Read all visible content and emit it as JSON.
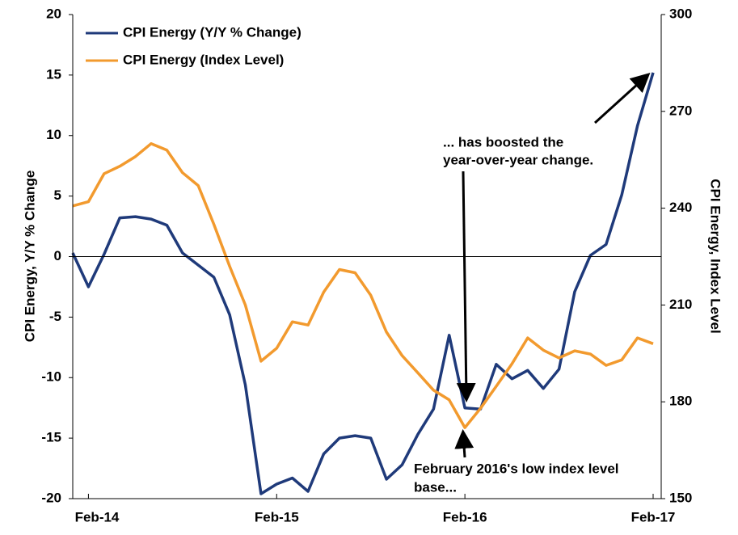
{
  "chart_data": {
    "type": "line",
    "categories": [
      null,
      "Feb-14",
      null,
      null,
      null,
      null,
      null,
      null,
      null,
      null,
      null,
      null,
      null,
      "Feb-15",
      null,
      null,
      null,
      null,
      null,
      null,
      null,
      null,
      null,
      null,
      null,
      "Feb-16",
      null,
      null,
      null,
      null,
      null,
      null,
      null,
      null,
      null,
      null,
      null,
      "Feb-17"
    ],
    "series": [
      {
        "name": "CPI Energy (Y/Y % Change)",
        "color": "#1f3a7a",
        "axis": "y",
        "values": [
          0.3,
          -2.5,
          0.2,
          3.2,
          3.3,
          3.1,
          2.6,
          0.3,
          -0.7,
          -1.7,
          -4.8,
          -10.6,
          -19.6,
          -18.8,
          -18.3,
          -19.4,
          -16.3,
          -15.0,
          -14.8,
          -15.0,
          -18.4,
          -17.2,
          -14.7,
          -12.6,
          -6.5,
          -12.5,
          -12.6,
          -8.9,
          -10.1,
          -9.4,
          -10.9,
          -9.3,
          -2.9,
          0.1,
          1.0,
          5.1,
          10.8,
          15.2
        ]
      },
      {
        "name": "CPI Energy (Index Level)",
        "color": "#f29a2e",
        "axis": "y2",
        "values": [
          240.7,
          242,
          250.7,
          253,
          256,
          260,
          258,
          251,
          247,
          235,
          222,
          210,
          192.6,
          196.6,
          204.8,
          203.8,
          214,
          221,
          220,
          213,
          201.6,
          194.3,
          189,
          183.6,
          180.6,
          172,
          178,
          184.8,
          191.8,
          199.8,
          196,
          193.6,
          195.8,
          194.8,
          191.3,
          193,
          199.8,
          198
        ]
      }
    ],
    "ylabel": "CPI Energy, Y/Y % Change",
    "y2label": "CPI Energy, Index Level",
    "ylim": [
      -20,
      20
    ],
    "yticks": [
      -20,
      -15,
      -10,
      -5,
      0,
      5,
      10,
      15,
      20
    ],
    "y2lim": [
      150,
      300
    ],
    "y2ticks": [
      150,
      180,
      210,
      240,
      270,
      300
    ],
    "annotations": [
      "... has boosted the",
      "year-over-year change.",
      "February 2016's low index level",
      "base..."
    ],
    "legend": "upper left",
    "grid": false
  }
}
